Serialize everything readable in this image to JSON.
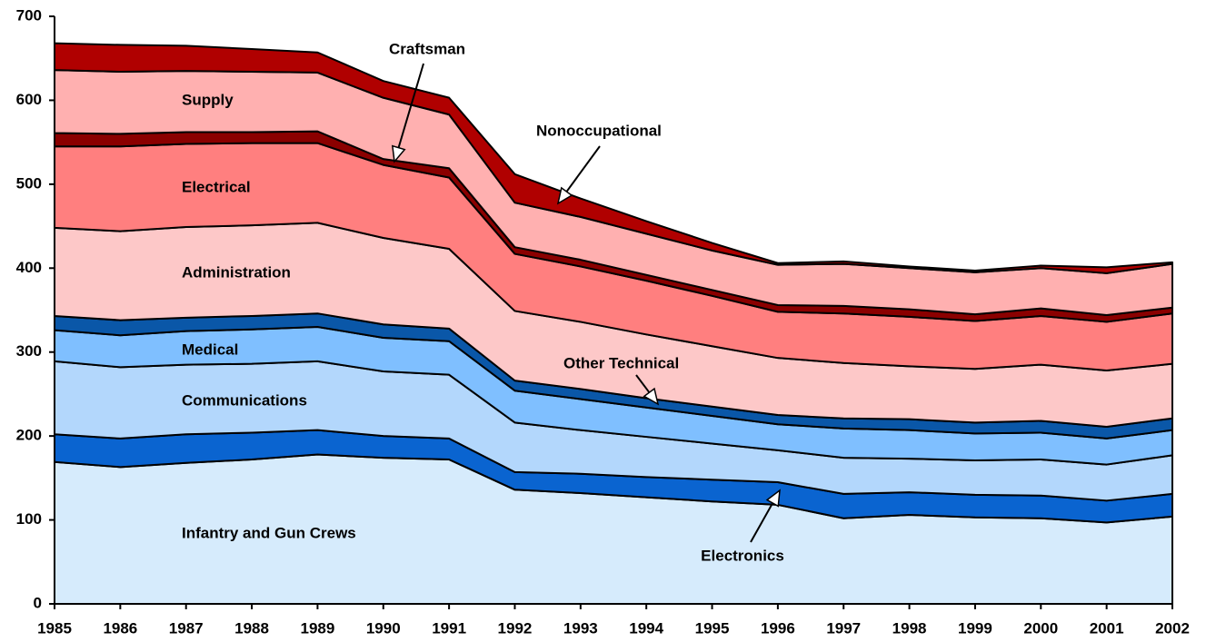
{
  "chart_data": {
    "type": "stacked_area",
    "x": [
      1985,
      1986,
      1987,
      1988,
      1989,
      1990,
      1991,
      1992,
      1993,
      1994,
      1995,
      1996,
      1997,
      1998,
      1999,
      2000,
      2001,
      2002
    ],
    "xlim": [
      1985,
      2002
    ],
    "xticks": [
      1985,
      1986,
      1987,
      1988,
      1989,
      1990,
      1991,
      1992,
      1993,
      1994,
      1995,
      1996,
      1997,
      1998,
      1999,
      2000,
      2001,
      2002
    ],
    "ylim": [
      0,
      700
    ],
    "yticks": [
      0,
      100,
      200,
      300,
      400,
      500,
      600,
      700
    ],
    "series": [
      {
        "name": "Infantry and Gun Crews",
        "color": "#d6ebfc",
        "values": [
          169,
          163,
          168,
          172,
          178,
          174,
          172,
          136,
          132,
          127,
          122,
          118,
          102,
          106,
          103,
          102,
          97,
          104
        ]
      },
      {
        "name": "Electronics",
        "color": "#0a64d0",
        "values": [
          33,
          34,
          34,
          32,
          29,
          26,
          25,
          21,
          23,
          24,
          26,
          27,
          29,
          27,
          27,
          27,
          26,
          27
        ]
      },
      {
        "name": "Communications",
        "color": "#b3d7fc",
        "values": [
          87,
          85,
          83,
          82,
          82,
          77,
          76,
          59,
          52,
          48,
          43,
          38,
          43,
          40,
          41,
          43,
          43,
          46
        ]
      },
      {
        "name": "Medical",
        "color": "#7fbfff",
        "values": [
          37,
          38,
          40,
          41,
          41,
          40,
          40,
          38,
          37,
          35,
          33,
          31,
          35,
          34,
          32,
          32,
          31,
          30
        ]
      },
      {
        "name": "Other Technical",
        "color": "#0a57a8",
        "values": [
          17,
          18,
          16,
          16,
          16,
          16,
          15,
          12,
          12,
          11,
          11,
          11,
          12,
          13,
          13,
          14,
          14,
          14
        ]
      },
      {
        "name": "Administration",
        "color": "#fdc8c8",
        "values": [
          105,
          106,
          108,
          108,
          108,
          103,
          95,
          83,
          80,
          76,
          72,
          68,
          66,
          63,
          64,
          67,
          67,
          65
        ]
      },
      {
        "name": "Electrical",
        "color": "#ff7f7f",
        "values": [
          97,
          101,
          99,
          98,
          95,
          87,
          85,
          68,
          66,
          64,
          60,
          55,
          59,
          59,
          57,
          58,
          58,
          60
        ]
      },
      {
        "name": "Craftsman",
        "color": "#8b0000",
        "values": [
          16,
          15,
          14,
          13,
          14,
          7,
          11,
          8,
          8,
          7,
          7,
          8,
          9,
          9,
          8,
          9,
          8,
          7
        ]
      },
      {
        "name": "Supply",
        "color": "#ffb0b0",
        "values": [
          75,
          74,
          73,
          72,
          70,
          73,
          64,
          53,
          51,
          49,
          47,
          48,
          50,
          49,
          50,
          48,
          50,
          52
        ]
      },
      {
        "name": "Nonoccupational",
        "color": "#b00000",
        "values": [
          32,
          32,
          30,
          27,
          24,
          20,
          20,
          34,
          22,
          15,
          9,
          2,
          3,
          2,
          2,
          3,
          7,
          2
        ]
      }
    ]
  }
}
